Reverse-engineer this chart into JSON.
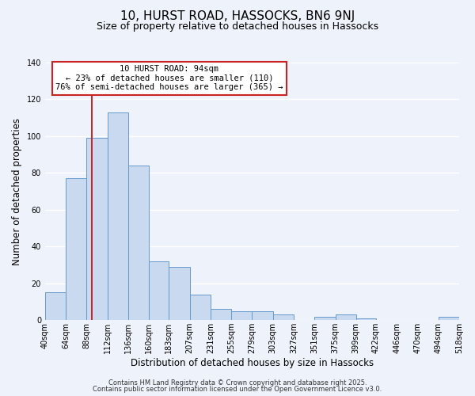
{
  "title": "10, HURST ROAD, HASSOCKS, BN6 9NJ",
  "subtitle": "Size of property relative to detached houses in Hassocks",
  "xlabel": "Distribution of detached houses by size in Hassocks",
  "ylabel": "Number of detached properties",
  "bar_color": "#c9d9f0",
  "bar_edge_color": "#6699cc",
  "background_color": "#eef2fa",
  "grid_color": "#ffffff",
  "vline_x": 94,
  "vline_color": "#cc2222",
  "bin_edges": [
    40,
    64,
    88,
    112,
    136,
    160,
    183,
    207,
    231,
    255,
    279,
    303,
    327,
    351,
    375,
    399,
    422,
    446,
    470,
    494,
    518
  ],
  "bar_heights": [
    15,
    77,
    99,
    113,
    84,
    32,
    29,
    14,
    6,
    5,
    5,
    3,
    0,
    2,
    3,
    1,
    0,
    0,
    0,
    2
  ],
  "tick_labels": [
    "40sqm",
    "64sqm",
    "88sqm",
    "112sqm",
    "136sqm",
    "160sqm",
    "183sqm",
    "207sqm",
    "231sqm",
    "255sqm",
    "279sqm",
    "303sqm",
    "327sqm",
    "351sqm",
    "375sqm",
    "399sqm",
    "422sqm",
    "446sqm",
    "470sqm",
    "494sqm",
    "518sqm"
  ],
  "ylim": [
    0,
    140
  ],
  "yticks": [
    0,
    20,
    40,
    60,
    80,
    100,
    120,
    140
  ],
  "annotation_title": "10 HURST ROAD: 94sqm",
  "annotation_line1": "← 23% of detached houses are smaller (110)",
  "annotation_line2": "76% of semi-detached houses are larger (365) →",
  "annotation_box_color": "#ffffff",
  "annotation_box_edge": "#cc2222",
  "footer1": "Contains HM Land Registry data © Crown copyright and database right 2025.",
  "footer2": "Contains public sector information licensed under the Open Government Licence v3.0.",
  "title_fontsize": 11,
  "subtitle_fontsize": 9,
  "label_fontsize": 8.5,
  "tick_fontsize": 7,
  "ann_fontsize": 7.5,
  "footer_fontsize": 6
}
